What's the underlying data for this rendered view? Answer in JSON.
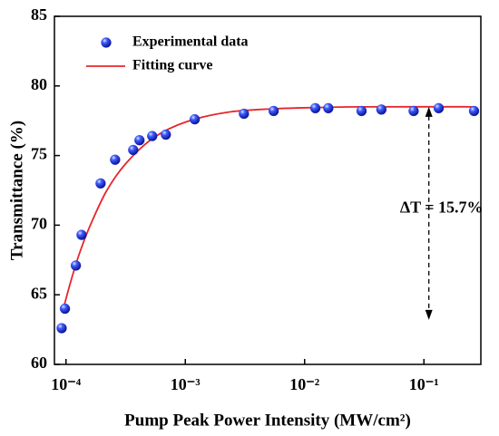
{
  "chart_data": {
    "type": "scatter",
    "xlabel": "Pump Peak Power Intensity (MW/cm²)",
    "ylabel": "Transmittance (%)",
    "xscale": "log",
    "xlim": [
      8e-05,
      0.3
    ],
    "ylim": [
      60,
      85
    ],
    "xticks": [
      {
        "value": 0.0001,
        "label": "10⁻⁴"
      },
      {
        "value": 0.001,
        "label": "10⁻³"
      },
      {
        "value": 0.01,
        "label": "10⁻²"
      },
      {
        "value": 0.1,
        "label": "10⁻¹"
      }
    ],
    "yticks": [
      60,
      65,
      70,
      75,
      80,
      85
    ],
    "legend": "upper left",
    "series": [
      {
        "name": "Experimental data",
        "type": "scatter",
        "color": "#1a2bd8",
        "x": [
          9.2e-05,
          9.8e-05,
          0.000121,
          0.000135,
          0.000195,
          0.000258,
          0.000366,
          0.000413,
          0.000528,
          0.000687,
          0.0012,
          0.0031,
          0.0055,
          0.0123,
          0.0158,
          0.03,
          0.044,
          0.082,
          0.133,
          0.263
        ],
        "values": [
          62.6,
          64.0,
          67.1,
          69.3,
          73.0,
          74.7,
          75.4,
          76.1,
          76.4,
          76.5,
          77.6,
          78.0,
          78.2,
          78.4,
          78.4,
          78.2,
          78.3,
          78.2,
          78.4,
          78.2
        ]
      },
      {
        "name": "Fitting curve",
        "type": "line",
        "color": "#e8262b",
        "x": [
          9.5e-05,
          0.00011,
          0.00013,
          0.00016,
          0.00022,
          0.000323,
          0.000547,
          0.001,
          0.00222,
          0.0053,
          0.0128,
          0.0305,
          0.263
        ],
        "values": [
          64.0,
          66.0,
          68.0,
          70.0,
          72.5,
          74.5,
          76.3,
          77.4,
          78.1,
          78.35,
          78.45,
          78.5,
          78.5
        ]
      }
    ],
    "annotations": [
      {
        "text": "ΔT = 15.7%",
        "x": 0.11,
        "y_from": 78.5,
        "y_to": 63.2
      }
    ]
  }
}
